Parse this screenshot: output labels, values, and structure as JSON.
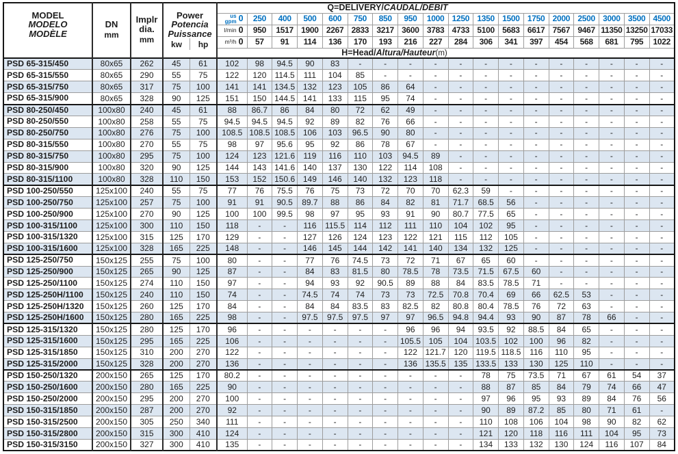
{
  "colors": {
    "stripe": "#dce6f1",
    "accent_blue": "#0070c0",
    "border_dark": "#161616",
    "border_light": "#9c9c9c"
  },
  "header": {
    "model_lines": [
      "MODEL",
      "MODELO",
      "MODÈLE"
    ],
    "dn_label": "DN",
    "implr_lines": [
      "Implr",
      "dia."
    ],
    "mm": "mm",
    "power_lines": [
      "Power",
      "Potencia",
      "Puissance"
    ],
    "kw": "kw",
    "hp": "hp",
    "q_title_bold": "Q=DELIVERY/",
    "q_title_italic": "CAUDAL/DÉBIT",
    "h_title_bold": "H=Head/",
    "h_title_italic": "Altura/Hauteur",
    "h_title_unit": "(m)",
    "unit_gpm_line1": "us",
    "unit_gpm_line2": "gpm",
    "unit_lmin": "l/min",
    "unit_m3h": "m³/h",
    "zero": "0"
  },
  "delivery": {
    "gpm": [
      "250",
      "400",
      "500",
      "600",
      "750",
      "850",
      "950",
      "1000",
      "1250",
      "1350",
      "1500",
      "1750",
      "2000",
      "2500",
      "3000",
      "3500",
      "4500"
    ],
    "lmin": [
      "950",
      "1517",
      "1900",
      "2267",
      "2833",
      "3217",
      "3600",
      "3783",
      "4733",
      "5100",
      "5683",
      "6617",
      "7567",
      "9467",
      "11350",
      "13250",
      "17033"
    ],
    "m3h": [
      "57",
      "91",
      "114",
      "136",
      "170",
      "193",
      "216",
      "227",
      "284",
      "306",
      "341",
      "397",
      "454",
      "568",
      "681",
      "795",
      "1022"
    ]
  },
  "rows": [
    {
      "model": "PSD 65-315/450",
      "dn": "80x65",
      "d": "262",
      "kw": "45",
      "hp": "61",
      "group_end": false,
      "h": [
        "102",
        "98",
        "94.5",
        "90",
        "83",
        "-",
        "-",
        "-",
        "-",
        "-",
        "-",
        "-",
        "-",
        "-",
        "-",
        "-",
        "-",
        "-"
      ]
    },
    {
      "model": "PSD 65-315/550",
      "dn": "80x65",
      "d": "290",
      "kw": "55",
      "hp": "75",
      "group_end": false,
      "h": [
        "122",
        "120",
        "114.5",
        "111",
        "104",
        "85",
        "-",
        "-",
        "-",
        "-",
        "-",
        "-",
        "-",
        "-",
        "-",
        "-",
        "-",
        "-"
      ]
    },
    {
      "model": "PSD 65-315/750",
      "dn": "80x65",
      "d": "317",
      "kw": "75",
      "hp": "100",
      "group_end": false,
      "h": [
        "141",
        "141",
        "134.5",
        "132",
        "123",
        "105",
        "86",
        "64",
        "-",
        "-",
        "-",
        "-",
        "-",
        "-",
        "-",
        "-",
        "-",
        "-"
      ]
    },
    {
      "model": "PSD 65-315/900",
      "dn": "80x65",
      "d": "328",
      "kw": "90",
      "hp": "125",
      "group_end": true,
      "h": [
        "151",
        "150",
        "144.5",
        "141",
        "133",
        "115",
        "95",
        "74",
        "-",
        "-",
        "-",
        "-",
        "-",
        "-",
        "-",
        "-",
        "-",
        "-"
      ]
    },
    {
      "model": "PSD 80-250/450",
      "dn": "100x80",
      "d": "240",
      "kw": "45",
      "hp": "61",
      "group_end": false,
      "h": [
        "88",
        "86.7",
        "86",
        "84",
        "80",
        "72",
        "62",
        "49",
        "-",
        "-",
        "-",
        "-",
        "-",
        "-",
        "-",
        "-",
        "-",
        "-"
      ]
    },
    {
      "model": "PSD 80-250/550",
      "dn": "100x80",
      "d": "258",
      "kw": "55",
      "hp": "75",
      "group_end": false,
      "h": [
        "94.5",
        "94.5",
        "94.5",
        "92",
        "89",
        "82",
        "76",
        "66",
        "-",
        "-",
        "-",
        "-",
        "-",
        "-",
        "-",
        "-",
        "-",
        "-"
      ]
    },
    {
      "model": "PSD 80-250/750",
      "dn": "100x80",
      "d": "276",
      "kw": "75",
      "hp": "100",
      "group_end": false,
      "h": [
        "108.5",
        "108.5",
        "108.5",
        "106",
        "103",
        "96.5",
        "90",
        "80",
        "-",
        "-",
        "-",
        "-",
        "-",
        "-",
        "-",
        "-",
        "-",
        "-"
      ]
    },
    {
      "model": "PSD 80-315/550",
      "dn": "100x80",
      "d": "270",
      "kw": "55",
      "hp": "75",
      "group_end": false,
      "h": [
        "98",
        "97",
        "95.6",
        "95",
        "92",
        "86",
        "78",
        "67",
        "-",
        "-",
        "-",
        "-",
        "-",
        "-",
        "-",
        "-",
        "-",
        "-"
      ]
    },
    {
      "model": "PSD 80-315/750",
      "dn": "100x80",
      "d": "295",
      "kw": "75",
      "hp": "100",
      "group_end": false,
      "h": [
        "124",
        "123",
        "121.6",
        "119",
        "116",
        "110",
        "103",
        "94.5",
        "89",
        "-",
        "-",
        "-",
        "-",
        "-",
        "-",
        "-",
        "-",
        "-"
      ]
    },
    {
      "model": "PSD 80-315/900",
      "dn": "100x80",
      "d": "320",
      "kw": "90",
      "hp": "125",
      "group_end": false,
      "h": [
        "144",
        "143",
        "141.6",
        "140",
        "137",
        "130",
        "122",
        "114",
        "108",
        "-",
        "-",
        "-",
        "-",
        "-",
        "-",
        "-",
        "-",
        "-"
      ]
    },
    {
      "model": "PSD 80-315/1100",
      "dn": "100x80",
      "d": "328",
      "kw": "110",
      "hp": "150",
      "group_end": true,
      "h": [
        "153",
        "152",
        "150.6",
        "149",
        "146",
        "140",
        "132",
        "123",
        "118",
        "-",
        "-",
        "-",
        "-",
        "-",
        "-",
        "-",
        "-",
        "-"
      ]
    },
    {
      "model": "PSD 100-250/550",
      "dn": "125x100",
      "d": "240",
      "kw": "55",
      "hp": "75",
      "group_end": false,
      "h": [
        "77",
        "76",
        "75.5",
        "76",
        "75",
        "73",
        "72",
        "70",
        "70",
        "62.3",
        "59",
        "-",
        "-",
        "-",
        "-",
        "-",
        "-",
        "-"
      ]
    },
    {
      "model": "PSD 100-250/750",
      "dn": "125x100",
      "d": "257",
      "kw": "75",
      "hp": "100",
      "group_end": false,
      "h": [
        "91",
        "91",
        "90.5",
        "89.7",
        "88",
        "86",
        "84",
        "82",
        "81",
        "71.7",
        "68.5",
        "56",
        "-",
        "-",
        "-",
        "-",
        "-",
        "-"
      ]
    },
    {
      "model": "PSD 100-250/900",
      "dn": "125x100",
      "d": "270",
      "kw": "90",
      "hp": "125",
      "group_end": false,
      "h": [
        "100",
        "100",
        "99.5",
        "98",
        "97",
        "95",
        "93",
        "91",
        "90",
        "80.7",
        "77.5",
        "65",
        "-",
        "-",
        "-",
        "-",
        "-",
        "-"
      ]
    },
    {
      "model": "PSD 100-315/1100",
      "dn": "125x100",
      "d": "300",
      "kw": "110",
      "hp": "150",
      "group_end": false,
      "h": [
        "118",
        "-",
        "-",
        "116",
        "115.5",
        "114",
        "112",
        "111",
        "110",
        "104",
        "102",
        "95",
        "-",
        "-",
        "-",
        "-",
        "-",
        "-"
      ]
    },
    {
      "model": "PSD 100-315/1320",
      "dn": "125x100",
      "d": "315",
      "kw": "125",
      "hp": "170",
      "group_end": false,
      "h": [
        "129",
        "-",
        "-",
        "127",
        "126",
        "124",
        "123",
        "122",
        "121",
        "115",
        "112",
        "105",
        "-",
        "-",
        "-",
        "-",
        "-",
        "-"
      ]
    },
    {
      "model": "PSD 100-315/1600",
      "dn": "125x100",
      "d": "328",
      "kw": "165",
      "hp": "225",
      "group_end": true,
      "h": [
        "148",
        "-",
        "-",
        "146",
        "145",
        "144",
        "142",
        "141",
        "140",
        "134",
        "132",
        "125",
        "-",
        "-",
        "-",
        "-",
        "-",
        "-"
      ]
    },
    {
      "model": "PSD 125-250/750",
      "dn": "150x125",
      "d": "255",
      "kw": "75",
      "hp": "100",
      "group_end": false,
      "h": [
        "80",
        "-",
        "-",
        "77",
        "76",
        "74.5",
        "73",
        "72",
        "71",
        "67",
        "65",
        "60",
        "-",
        "-",
        "-",
        "-",
        "-",
        "-"
      ]
    },
    {
      "model": "PSD 125-250/900",
      "dn": "150x125",
      "d": "265",
      "kw": "90",
      "hp": "125",
      "group_end": false,
      "h": [
        "87",
        "-",
        "-",
        "84",
        "83",
        "81.5",
        "80",
        "78.5",
        "78",
        "73.5",
        "71.5",
        "67.5",
        "60",
        "-",
        "-",
        "-",
        "-",
        "-"
      ]
    },
    {
      "model": "PSD 125-250/1100",
      "dn": "150x125",
      "d": "274",
      "kw": "110",
      "hp": "150",
      "group_end": false,
      "h": [
        "97",
        "-",
        "-",
        "94",
        "93",
        "92",
        "90.5",
        "89",
        "88",
        "84",
        "83.5",
        "78.5",
        "71",
        "-",
        "-",
        "-",
        "-",
        "-"
      ]
    },
    {
      "model": "PSD 125-250H/1100",
      "dn": "150x125",
      "d": "240",
      "kw": "110",
      "hp": "150",
      "group_end": false,
      "h": [
        "74",
        "-",
        "-",
        "74.5",
        "74",
        "74",
        "73",
        "73",
        "72.5",
        "70.8",
        "70.4",
        "69",
        "66",
        "62.5",
        "53",
        "-",
        "-",
        "-"
      ]
    },
    {
      "model": "PSD 125-250H/1320",
      "dn": "150x125",
      "d": "260",
      "kw": "125",
      "hp": "170",
      "group_end": false,
      "h": [
        "84",
        "-",
        "-",
        "84",
        "84",
        "83.5",
        "83",
        "82.5",
        "82",
        "80.8",
        "80.4",
        "78.5",
        "76",
        "72",
        "63",
        "-",
        "-",
        "-"
      ]
    },
    {
      "model": "PSD 125-250H/1600",
      "dn": "150x125",
      "d": "280",
      "kw": "165",
      "hp": "225",
      "group_end": true,
      "h": [
        "98",
        "-",
        "-",
        "97.5",
        "97.5",
        "97.5",
        "97",
        "97",
        "96.5",
        "94.8",
        "94.4",
        "93",
        "90",
        "87",
        "78",
        "66",
        "-",
        "-"
      ]
    },
    {
      "model": "PSD 125-315/1320",
      "dn": "150x125",
      "d": "280",
      "kw": "125",
      "hp": "170",
      "group_end": false,
      "h": [
        "96",
        "-",
        "-",
        "-",
        "-",
        "-",
        "-",
        "96",
        "96",
        "94",
        "93.5",
        "92",
        "88.5",
        "84",
        "65",
        "-",
        "-",
        "-"
      ]
    },
    {
      "model": "PSD 125-315/1600",
      "dn": "150x125",
      "d": "295",
      "kw": "165",
      "hp": "225",
      "group_end": false,
      "h": [
        "106",
        "-",
        "-",
        "-",
        "-",
        "-",
        "-",
        "105.5",
        "105",
        "104",
        "103.5",
        "102",
        "100",
        "96",
        "82",
        "-",
        "-",
        "-"
      ]
    },
    {
      "model": "PSD 125-315/1850",
      "dn": "150x125",
      "d": "310",
      "kw": "200",
      "hp": "270",
      "group_end": false,
      "h": [
        "122",
        "-",
        "-",
        "-",
        "-",
        "-",
        "-",
        "122",
        "121.7",
        "120",
        "119.5",
        "118.5",
        "116",
        "110",
        "95",
        "-",
        "-",
        "-"
      ]
    },
    {
      "model": "PSD 125-315/2000",
      "dn": "150x125",
      "d": "328",
      "kw": "200",
      "hp": "270",
      "group_end": true,
      "h": [
        "136",
        "-",
        "-",
        "-",
        "-",
        "-",
        "-",
        "136",
        "135.5",
        "135",
        "133.5",
        "133",
        "130",
        "125",
        "110",
        "-",
        "-",
        "-"
      ]
    },
    {
      "model": "PSD 150-250/1320",
      "dn": "200x150",
      "d": "265",
      "kw": "125",
      "hp": "170",
      "group_end": false,
      "h": [
        "80.2",
        "-",
        "-",
        "-",
        "-",
        "-",
        "-",
        "-",
        "-",
        "-",
        "78",
        "75",
        "73.5",
        "71",
        "67",
        "61",
        "54",
        "37"
      ]
    },
    {
      "model": "PSD 150-250/1600",
      "dn": "200x150",
      "d": "280",
      "kw": "165",
      "hp": "225",
      "group_end": false,
      "h": [
        "90",
        "-",
        "-",
        "-",
        "-",
        "-",
        "-",
        "-",
        "-",
        "-",
        "88",
        "87",
        "85",
        "84",
        "79",
        "74",
        "66",
        "47"
      ]
    },
    {
      "model": "PSD 150-250/2000",
      "dn": "200x150",
      "d": "295",
      "kw": "200",
      "hp": "270",
      "group_end": false,
      "h": [
        "100",
        "-",
        "-",
        "-",
        "-",
        "-",
        "-",
        "-",
        "-",
        "-",
        "97",
        "96",
        "95",
        "93",
        "89",
        "84",
        "76",
        "56"
      ]
    },
    {
      "model": "PSD 150-315/1850",
      "dn": "200x150",
      "d": "287",
      "kw": "200",
      "hp": "270",
      "group_end": false,
      "h": [
        "92",
        "-",
        "-",
        "-",
        "-",
        "-",
        "-",
        "-",
        "-",
        "-",
        "90",
        "89",
        "87.2",
        "85",
        "80",
        "71",
        "61",
        "-"
      ]
    },
    {
      "model": "PSD 150-315/2500",
      "dn": "200x150",
      "d": "305",
      "kw": "250",
      "hp": "340",
      "group_end": false,
      "h": [
        "111",
        "-",
        "-",
        "-",
        "-",
        "-",
        "-",
        "-",
        "-",
        "-",
        "110",
        "108",
        "106",
        "104",
        "98",
        "90",
        "82",
        "62"
      ]
    },
    {
      "model": "PSD 150-315/2800",
      "dn": "200x150",
      "d": "315",
      "kw": "300",
      "hp": "410",
      "group_end": false,
      "h": [
        "124",
        "-",
        "-",
        "-",
        "-",
        "-",
        "-",
        "-",
        "-",
        "-",
        "121",
        "120",
        "118",
        "116",
        "111",
        "104",
        "95",
        "73"
      ]
    },
    {
      "model": "PSD 150-315/3150",
      "dn": "200x150",
      "d": "327",
      "kw": "300",
      "hp": "410",
      "group_end": false,
      "h": [
        "135",
        "-",
        "-",
        "-",
        "-",
        "-",
        "-",
        "-",
        "-",
        "-",
        "134",
        "133",
        "132",
        "130",
        "124",
        "116",
        "107",
        "84"
      ]
    }
  ]
}
